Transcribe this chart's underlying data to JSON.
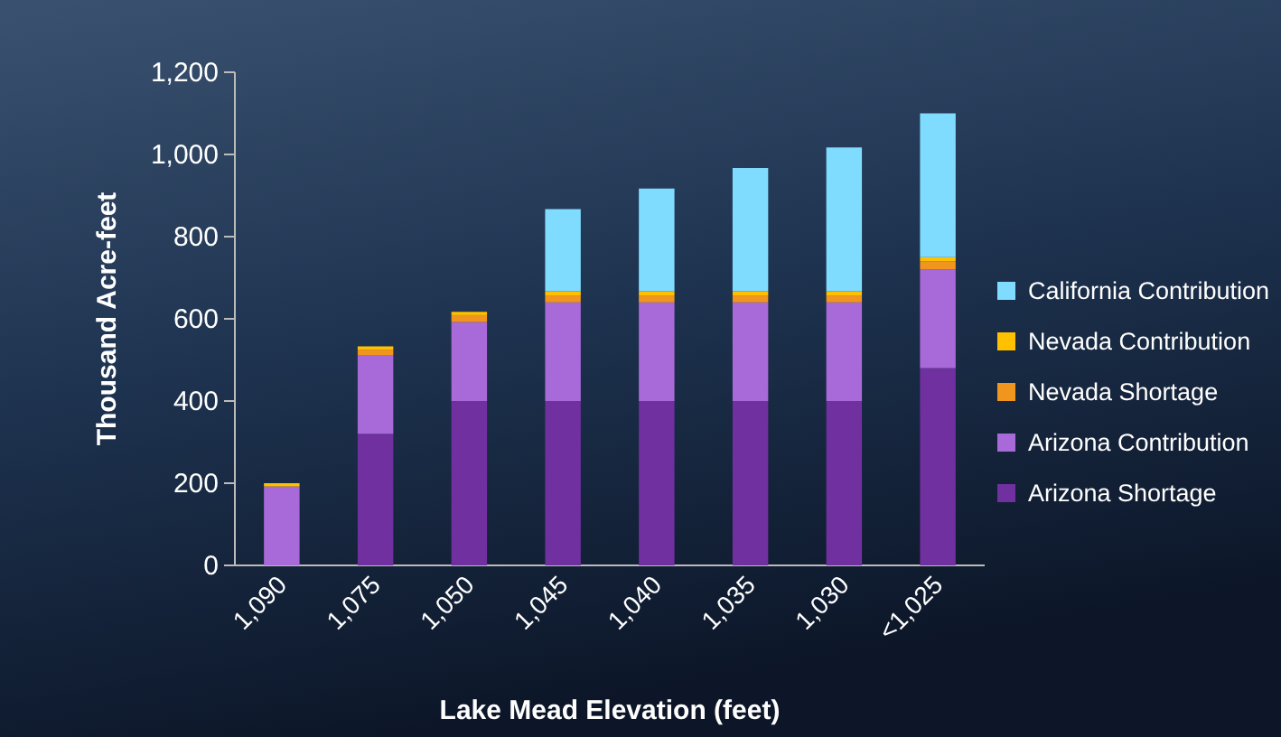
{
  "chart_data": {
    "type": "bar",
    "stacked": true,
    "xlabel": "Lake Mead Elevation (feet)",
    "ylabel": "Thousand Acre-feet",
    "categories": [
      "1,090",
      "1,075",
      "1,050",
      "1,045",
      "1,040",
      "1,035",
      "1,030",
      "<1,025"
    ],
    "series": [
      {
        "name": "Arizona Shortage",
        "color": "#7030a0",
        "values": [
          0,
          320,
          400,
          400,
          400,
          400,
          400,
          480
        ]
      },
      {
        "name": "Arizona Contribution",
        "color": "#a86ad8",
        "values": [
          192,
          192,
          192,
          240,
          240,
          240,
          240,
          240
        ]
      },
      {
        "name": "Nevada Shortage",
        "color": "#f0961e",
        "values": [
          0,
          13,
          17,
          17,
          17,
          17,
          17,
          20
        ]
      },
      {
        "name": "Nevada Contribution",
        "color": "#ffc000",
        "values": [
          8,
          8,
          8,
          10,
          10,
          10,
          10,
          10
        ]
      },
      {
        "name": "California Contribution",
        "color": "#80dcff",
        "values": [
          0,
          0,
          0,
          200,
          250,
          300,
          350,
          350
        ]
      }
    ],
    "ylim": [
      0,
      1200
    ],
    "yticks": [
      {
        "value": 0,
        "label": "0"
      },
      {
        "value": 200,
        "label": "200"
      },
      {
        "value": 400,
        "label": "400"
      },
      {
        "value": 600,
        "label": "600"
      },
      {
        "value": 800,
        "label": "800"
      },
      {
        "value": 1000,
        "label": "1,000"
      },
      {
        "value": 1200,
        "label": "1,200"
      }
    ],
    "legend": "right"
  }
}
